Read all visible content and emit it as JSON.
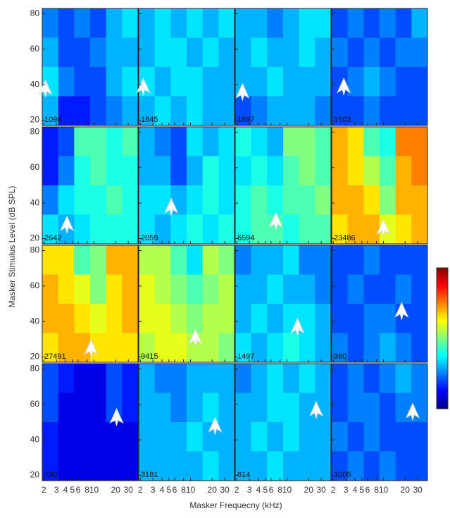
{
  "chart_data": {
    "type": "heatmap",
    "xlabel": "Masker Frequecny (kHz)",
    "ylabel": "Masker Stimulus Level (dB SPL)",
    "xscale": "log",
    "xlim": [
      1.9,
      41
    ],
    "ylim": [
      17,
      83
    ],
    "xticks": [
      2,
      3,
      4,
      5,
      6,
      8,
      10,
      20,
      30
    ],
    "yticks": [
      20,
      40,
      60,
      80
    ],
    "panels": [
      {
        "label": 1098,
        "arrow": {
          "x": 2.1,
          "y": 37
        },
        "grid": [
          [
            0.25,
            0.2,
            0.25,
            0.2,
            0.3,
            0.35
          ],
          [
            0.3,
            0.2,
            0.2,
            0.25,
            0.3,
            0.3
          ],
          [
            0.35,
            0.25,
            0.2,
            0.2,
            0.3,
            0.35
          ],
          [
            0.3,
            0.15,
            0.15,
            0.2,
            0.25,
            0.3
          ]
        ]
      },
      {
        "label": 1845,
        "arrow": {
          "x": 2.2,
          "y": 38
        },
        "grid": [
          [
            0.3,
            0.35,
            0.3,
            0.35,
            0.3,
            0.35
          ],
          [
            0.3,
            0.35,
            0.35,
            0.3,
            0.35,
            0.3
          ],
          [
            0.35,
            0.3,
            0.35,
            0.35,
            0.3,
            0.3
          ],
          [
            0.3,
            0.35,
            0.3,
            0.35,
            0.3,
            0.3
          ]
        ]
      },
      {
        "label": 1697,
        "arrow": {
          "x": 2.4,
          "y": 35
        },
        "grid": [
          [
            0.3,
            0.3,
            0.25,
            0.3,
            0.35,
            0.35
          ],
          [
            0.3,
            0.35,
            0.3,
            0.3,
            0.35,
            0.3
          ],
          [
            0.3,
            0.3,
            0.35,
            0.3,
            0.3,
            0.3
          ],
          [
            0.2,
            0.25,
            0.3,
            0.3,
            0.3,
            0.25
          ]
        ]
      },
      {
        "label": 1503,
        "arrow": {
          "x": 2.8,
          "y": 38
        },
        "grid": [
          [
            0.2,
            0.25,
            0.2,
            0.25,
            0.2,
            0.3
          ],
          [
            0.25,
            0.2,
            0.25,
            0.2,
            0.25,
            0.25
          ],
          [
            0.2,
            0.25,
            0.3,
            0.25,
            0.2,
            0.2
          ],
          [
            0.2,
            0.2,
            0.25,
            0.2,
            0.2,
            0.2
          ]
        ]
      },
      {
        "label": 2642,
        "arrow": {
          "x": 4.2,
          "y": 27
        },
        "grid": [
          [
            0.15,
            0.2,
            0.45,
            0.45,
            0.4,
            0.45
          ],
          [
            0.15,
            0.25,
            0.4,
            0.45,
            0.4,
            0.4
          ],
          [
            0.25,
            0.35,
            0.4,
            0.4,
            0.45,
            0.4
          ],
          [
            0.35,
            0.3,
            0.35,
            0.4,
            0.4,
            0.4
          ]
        ]
      },
      {
        "label": 2059,
        "arrow": {
          "x": 5.4,
          "y": 37
        },
        "grid": [
          [
            0.3,
            0.25,
            0.2,
            0.35,
            0.3,
            0.35
          ],
          [
            0.3,
            0.3,
            0.2,
            0.3,
            0.4,
            0.35
          ],
          [
            0.35,
            0.35,
            0.3,
            0.35,
            0.4,
            0.35
          ],
          [
            0.35,
            0.3,
            0.35,
            0.4,
            0.35,
            0.4
          ]
        ]
      },
      {
        "label": 6594,
        "arrow": {
          "x": 7.0,
          "y": 29
        },
        "grid": [
          [
            0.4,
            0.35,
            0.3,
            0.5,
            0.5,
            0.45
          ],
          [
            0.35,
            0.4,
            0.35,
            0.45,
            0.5,
            0.45
          ],
          [
            0.4,
            0.45,
            0.4,
            0.45,
            0.45,
            0.5
          ],
          [
            0.4,
            0.45,
            0.45,
            0.4,
            0.45,
            0.45
          ]
        ]
      },
      {
        "label": 23486,
        "arrow": {
          "x": 10,
          "y": 25
        },
        "grid": [
          [
            0.7,
            0.65,
            0.45,
            0.4,
            0.75,
            0.75
          ],
          [
            0.7,
            0.65,
            0.55,
            0.45,
            0.7,
            0.75
          ],
          [
            0.7,
            0.7,
            0.65,
            0.5,
            0.7,
            0.7
          ],
          [
            0.65,
            0.7,
            0.7,
            0.6,
            0.65,
            0.7
          ]
        ]
      },
      {
        "label": 27491,
        "arrow": {
          "x": 9.1,
          "y": 24
        },
        "grid": [
          [
            0.65,
            0.65,
            0.45,
            0.5,
            0.7,
            0.7
          ],
          [
            0.7,
            0.65,
            0.6,
            0.5,
            0.65,
            0.7
          ],
          [
            0.7,
            0.7,
            0.65,
            0.6,
            0.65,
            0.7
          ],
          [
            0.65,
            0.7,
            0.7,
            0.65,
            0.65,
            0.65
          ]
        ]
      },
      {
        "label": 9415,
        "arrow": {
          "x": 11.7,
          "y": 30
        },
        "grid": [
          [
            0.55,
            0.55,
            0.45,
            0.35,
            0.55,
            0.5
          ],
          [
            0.6,
            0.55,
            0.5,
            0.45,
            0.5,
            0.55
          ],
          [
            0.6,
            0.6,
            0.55,
            0.5,
            0.55,
            0.55
          ],
          [
            0.55,
            0.6,
            0.6,
            0.55,
            0.55,
            0.5
          ]
        ]
      },
      {
        "label": 1497,
        "arrow": {
          "x": 14,
          "y": 36
        },
        "grid": [
          [
            0.25,
            0.3,
            0.3,
            0.35,
            0.25,
            0.25
          ],
          [
            0.3,
            0.3,
            0.35,
            0.3,
            0.3,
            0.25
          ],
          [
            0.3,
            0.35,
            0.3,
            0.35,
            0.35,
            0.3
          ],
          [
            0.35,
            0.3,
            0.35,
            0.4,
            0.35,
            0.3
          ]
        ]
      },
      {
        "label": 360,
        "arrow": {
          "x": 17.9,
          "y": 45
        },
        "grid": [
          [
            0.2,
            0.2,
            0.25,
            0.2,
            0.2,
            0.2
          ],
          [
            0.2,
            0.25,
            0.2,
            0.2,
            0.25,
            0.2
          ],
          [
            0.2,
            0.2,
            0.25,
            0.25,
            0.2,
            0.2
          ],
          [
            0.25,
            0.2,
            0.25,
            0.3,
            0.25,
            0.2
          ]
        ]
      },
      {
        "label": 730,
        "arrow": {
          "x": 20.6,
          "y": 52
        },
        "grid": [
          [
            0.2,
            0.15,
            0.1,
            0.1,
            0.2,
            0.15
          ],
          [
            0.2,
            0.1,
            0.1,
            0.1,
            0.2,
            0.15
          ],
          [
            0.15,
            0.1,
            0.1,
            0.1,
            0.1,
            0.1
          ],
          [
            0.15,
            0.1,
            0.1,
            0.1,
            0.1,
            0.1
          ]
        ]
      },
      {
        "label": 3181,
        "arrow": {
          "x": 22,
          "y": 47
        },
        "grid": [
          [
            0.3,
            0.25,
            0.25,
            0.3,
            0.3,
            0.3
          ],
          [
            0.3,
            0.3,
            0.25,
            0.3,
            0.35,
            0.3
          ],
          [
            0.3,
            0.3,
            0.3,
            0.35,
            0.3,
            0.3
          ],
          [
            0.3,
            0.3,
            0.3,
            0.3,
            0.35,
            0.3
          ]
        ]
      },
      {
        "label": 614,
        "arrow": {
          "x": 25.5,
          "y": 56
        },
        "grid": [
          [
            0.25,
            0.3,
            0.35,
            0.3,
            0.35,
            0.3
          ],
          [
            0.3,
            0.3,
            0.35,
            0.35,
            0.3,
            0.3
          ],
          [
            0.3,
            0.35,
            0.3,
            0.35,
            0.3,
            0.3
          ],
          [
            0.3,
            0.3,
            0.35,
            0.3,
            0.3,
            0.3
          ]
        ]
      },
      {
        "label": 1005,
        "arrow": {
          "x": 25.5,
          "y": 55
        },
        "grid": [
          [
            0.2,
            0.25,
            0.2,
            0.25,
            0.3,
            0.25
          ],
          [
            0.2,
            0.25,
            0.25,
            0.2,
            0.25,
            0.25
          ],
          [
            0.25,
            0.2,
            0.25,
            0.2,
            0.2,
            0.2
          ],
          [
            0.2,
            0.25,
            0.2,
            0.25,
            0.2,
            0.2
          ]
        ]
      }
    ]
  }
}
